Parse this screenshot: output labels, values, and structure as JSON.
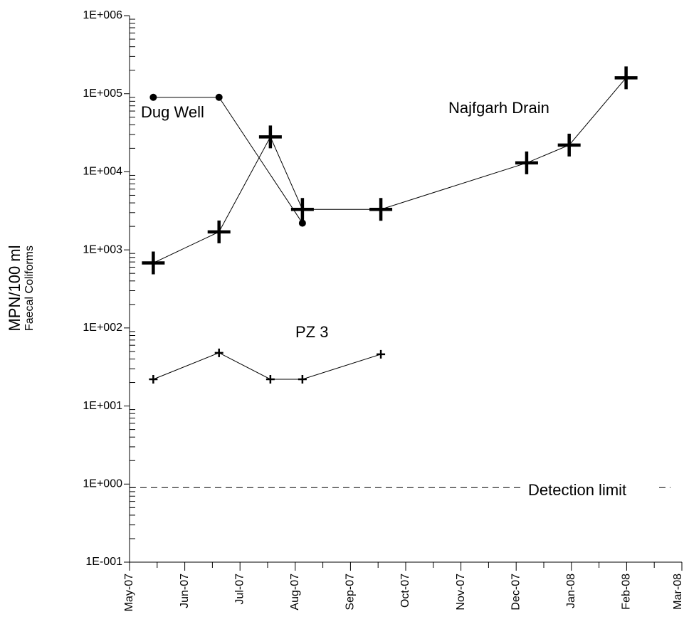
{
  "chart_data": {
    "type": "line",
    "y_label_lines": [
      "MPN/100 ml",
      "Faecal Coliforms"
    ],
    "log_y": true,
    "ylim": [
      0.1,
      1000000
    ],
    "yticks": [
      {
        "value": 1000000,
        "label": "1E+006"
      },
      {
        "value": 100000,
        "label": "1E+005"
      },
      {
        "value": 10000,
        "label": "1E+004"
      },
      {
        "value": 1000,
        "label": "1E+003"
      },
      {
        "value": 100,
        "label": "1E+002"
      },
      {
        "value": 10,
        "label": "1E+001"
      },
      {
        "value": 1,
        "label": "1E+000"
      },
      {
        "value": 0.1,
        "label": "1E-001"
      }
    ],
    "xlim": [
      0,
      10
    ],
    "xticks": [
      {
        "value": 0,
        "label": "May-07"
      },
      {
        "value": 1,
        "label": "Jun-07"
      },
      {
        "value": 2,
        "label": "Jul-07"
      },
      {
        "value": 3,
        "label": "Aug-07"
      },
      {
        "value": 4,
        "label": "Sep-07"
      },
      {
        "value": 5,
        "label": "Oct-07"
      },
      {
        "value": 6,
        "label": "Nov-07"
      },
      {
        "value": 7,
        "label": "Dec-07"
      },
      {
        "value": 8,
        "label": "Jan-08"
      },
      {
        "value": 9,
        "label": "Feb-08"
      },
      {
        "value": 10,
        "label": "Mar-08"
      }
    ],
    "series": [
      {
        "name": "Najfgarh Drain",
        "color": "#000000",
        "marker": "plus-large",
        "x": [
          0.43,
          1.62,
          2.55,
          3.13,
          4.55,
          7.19,
          7.96,
          8.99
        ],
        "values": [
          680,
          1700,
          28000,
          3300,
          3300,
          13000,
          22000,
          160000
        ]
      },
      {
        "name": "Dug Well",
        "color": "#000000",
        "marker": "circle",
        "x": [
          0.43,
          1.62,
          3.13
        ],
        "values": [
          90000,
          90000,
          2200
        ]
      },
      {
        "name": "PZ 3",
        "color": "#000000",
        "marker": "plus-small",
        "x": [
          0.43,
          1.62,
          2.55,
          3.13,
          4.55
        ],
        "values": [
          22,
          48,
          22,
          22,
          46
        ]
      }
    ],
    "detection_limit": {
      "label": "Detection limit",
      "value": 0.9
    }
  }
}
